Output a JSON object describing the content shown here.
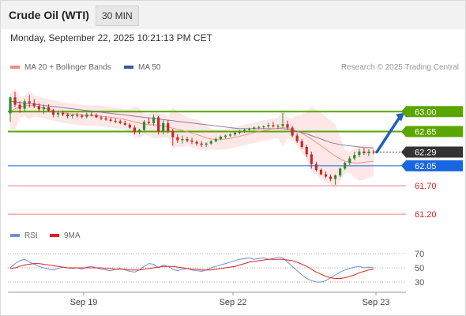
{
  "header": {
    "title": "Crude Oil (WTI)",
    "interval": "30 MIN",
    "timestamp": "Monday, September 22, 2025 10:21:13 PM CET"
  },
  "legend_main": [
    {
      "label": "MA 20 + Bollinger Bands",
      "color": "#f28b82"
    },
    {
      "label": "MA 50",
      "color": "#3b5998"
    }
  ],
  "copyright": "Research © 2025 Trading Central",
  "legend_rsi": [
    {
      "label": "RSI",
      "color": "#6f8fd8"
    },
    {
      "label": "9MA",
      "color": "#e02020"
    }
  ],
  "colors": {
    "up": "#2e8b2e",
    "down": "#c62828",
    "resistance": "#5aa500",
    "support": "#f08080",
    "pivot": "#1a66e0",
    "last_price": "#333333",
    "band_fill": "#fde3e3",
    "ma20": "#f28b82",
    "ma50": "#6a5a90",
    "arrow": "#1f5fbf"
  },
  "chart_data": [
    {
      "type": "candlestick",
      "title": "Crude Oil (WTI)",
      "x_labels": [
        "Sep 19",
        "Sep 22",
        "Sep 23"
      ],
      "ylim": [
        61.05,
        63.6
      ],
      "ohlc": [
        [
          62.97,
          63.26,
          62.82,
          63.25
        ],
        [
          63.25,
          63.35,
          63.08,
          63.12
        ],
        [
          63.12,
          63.18,
          62.98,
          63.05
        ],
        [
          63.05,
          63.22,
          63.0,
          63.18
        ],
        [
          63.18,
          63.29,
          63.07,
          63.15
        ],
        [
          63.15,
          63.22,
          63.06,
          63.1
        ],
        [
          63.1,
          63.15,
          63.0,
          63.04
        ],
        [
          63.04,
          63.12,
          62.96,
          63.08
        ],
        [
          63.08,
          63.13,
          62.99,
          63.02
        ],
        [
          63.02,
          63.05,
          62.9,
          62.95
        ],
        [
          62.95,
          63.02,
          62.9,
          62.98
        ],
        [
          62.98,
          63.02,
          62.92,
          62.95
        ],
        [
          62.95,
          62.98,
          62.88,
          62.92
        ],
        [
          62.92,
          62.96,
          62.88,
          62.94
        ],
        [
          62.94,
          62.98,
          62.9,
          62.93
        ],
        [
          62.93,
          62.96,
          62.88,
          62.91
        ],
        [
          62.91,
          62.98,
          62.88,
          62.95
        ],
        [
          62.95,
          62.99,
          62.91,
          62.94
        ],
        [
          62.94,
          62.97,
          62.89,
          62.9
        ],
        [
          62.9,
          62.93,
          62.85,
          62.88
        ],
        [
          62.88,
          62.92,
          62.84,
          62.86
        ],
        [
          62.86,
          62.9,
          62.82,
          62.84
        ],
        [
          62.84,
          62.88,
          62.8,
          62.83
        ],
        [
          62.83,
          62.86,
          62.78,
          62.8
        ],
        [
          62.8,
          62.84,
          62.75,
          62.77
        ],
        [
          62.77,
          62.8,
          62.7,
          62.72
        ],
        [
          62.72,
          62.76,
          62.6,
          62.64
        ],
        [
          62.64,
          62.7,
          62.6,
          62.68
        ],
        [
          62.68,
          62.85,
          62.66,
          62.82
        ],
        [
          62.82,
          62.9,
          62.78,
          62.8
        ],
        [
          62.8,
          62.95,
          62.75,
          62.9
        ],
        [
          62.9,
          62.92,
          62.6,
          62.65
        ],
        [
          62.65,
          62.85,
          62.6,
          62.8
        ],
        [
          62.8,
          62.85,
          62.62,
          62.66
        ],
        [
          62.66,
          62.7,
          62.4,
          62.55
        ],
        [
          62.55,
          62.6,
          62.45,
          62.5
        ],
        [
          62.5,
          62.58,
          62.44,
          62.52
        ],
        [
          62.52,
          62.56,
          62.46,
          62.49
        ],
        [
          62.49,
          62.54,
          62.43,
          62.47
        ],
        [
          62.47,
          62.5,
          62.4,
          62.44
        ],
        [
          62.44,
          62.48,
          62.38,
          62.42
        ],
        [
          62.42,
          62.46,
          62.38,
          62.44
        ],
        [
          62.44,
          62.5,
          62.42,
          62.48
        ],
        [
          62.48,
          62.55,
          62.46,
          62.52
        ],
        [
          62.52,
          62.58,
          62.5,
          62.56
        ],
        [
          62.56,
          62.6,
          62.53,
          62.58
        ],
        [
          62.58,
          62.62,
          62.55,
          62.6
        ],
        [
          62.6,
          62.65,
          62.57,
          62.63
        ],
        [
          62.63,
          62.68,
          62.6,
          62.66
        ],
        [
          62.66,
          62.7,
          62.63,
          62.68
        ],
        [
          62.68,
          62.72,
          62.65,
          62.7
        ],
        [
          62.7,
          62.74,
          62.67,
          62.72
        ],
        [
          62.72,
          62.75,
          62.69,
          62.73
        ],
        [
          62.73,
          62.76,
          62.7,
          62.74
        ],
        [
          62.74,
          62.8,
          62.71,
          62.76
        ],
        [
          62.76,
          62.82,
          62.72,
          62.74
        ],
        [
          62.74,
          62.78,
          62.7,
          62.75
        ],
        [
          62.75,
          62.98,
          62.72,
          62.78
        ],
        [
          62.78,
          62.84,
          62.68,
          62.72
        ],
        [
          62.72,
          62.75,
          62.55,
          62.58
        ],
        [
          62.58,
          62.62,
          62.45,
          62.48
        ],
        [
          62.48,
          62.52,
          62.35,
          62.38
        ],
        [
          62.38,
          62.42,
          62.2,
          62.25
        ],
        [
          62.25,
          62.3,
          62.0,
          62.08
        ],
        [
          62.08,
          62.12,
          61.95,
          61.98
        ],
        [
          61.98,
          62.0,
          61.88,
          61.9
        ],
        [
          61.9,
          61.95,
          61.83,
          61.86
        ],
        [
          61.86,
          61.9,
          61.78,
          61.82
        ],
        [
          61.82,
          61.9,
          61.72,
          61.88
        ],
        [
          61.88,
          62.02,
          61.85,
          62.0
        ],
        [
          62.0,
          62.12,
          61.98,
          62.1
        ],
        [
          62.1,
          62.22,
          62.06,
          62.18
        ],
        [
          62.18,
          62.3,
          62.15,
          62.24
        ],
        [
          62.24,
          62.35,
          62.2,
          62.3
        ],
        [
          62.3,
          62.36,
          62.24,
          62.27
        ],
        [
          62.27,
          62.34,
          62.22,
          62.3
        ],
        [
          62.3,
          62.33,
          62.25,
          62.29
        ]
      ],
      "ma20": [
        63.0,
        63.05,
        63.08,
        63.1,
        63.11,
        63.1,
        63.08,
        63.06,
        63.04,
        63.02,
        63.0,
        62.98,
        62.97,
        62.96,
        62.95,
        62.94,
        62.93,
        62.93,
        62.93,
        62.92,
        62.91,
        62.9,
        62.89,
        62.88,
        62.86,
        62.84,
        62.82,
        62.8,
        62.78,
        62.77,
        62.77,
        62.76,
        62.75,
        62.73,
        62.71,
        62.69,
        62.67,
        62.65,
        62.62,
        62.6,
        62.57,
        62.54,
        62.52,
        62.51,
        62.51,
        62.52,
        62.53,
        62.55,
        62.57,
        62.59,
        62.61,
        62.63,
        62.65,
        62.67,
        62.68,
        62.7,
        62.71,
        62.72,
        62.71,
        62.69,
        62.66,
        62.62,
        62.57,
        62.52,
        62.46,
        62.4,
        62.34,
        62.28,
        62.22,
        62.17,
        62.13,
        62.11,
        62.1,
        62.1,
        62.11,
        62.12,
        62.13
      ],
      "ma50": [
        63.18,
        63.17,
        63.16,
        63.15,
        63.14,
        63.13,
        63.12,
        63.11,
        63.1,
        63.09,
        63.08,
        63.07,
        63.06,
        63.05,
        63.04,
        63.03,
        63.02,
        63.01,
        63.0,
        62.99,
        62.98,
        62.97,
        62.96,
        62.95,
        62.94,
        62.93,
        62.92,
        62.91,
        62.9,
        62.89,
        62.88,
        62.87,
        62.86,
        62.85,
        62.84,
        62.83,
        62.82,
        62.81,
        62.8,
        62.79,
        62.78,
        62.77,
        62.76,
        62.75,
        62.74,
        62.73,
        62.72,
        62.71,
        62.7,
        62.7,
        62.7,
        62.7,
        62.7,
        62.7,
        62.7,
        62.7,
        62.7,
        62.7,
        62.69,
        62.67,
        62.65,
        62.63,
        62.61,
        62.58,
        62.55,
        62.52,
        62.49,
        62.46,
        62.44,
        62.42,
        62.41,
        62.4,
        62.39,
        62.38,
        62.37,
        62.37,
        62.36
      ],
      "levels": [
        {
          "value": 63.0,
          "label": "63.00",
          "kind": "resistance"
        },
        {
          "value": 62.65,
          "label": "62.65",
          "kind": "resistance"
        },
        {
          "value": 62.29,
          "label": "62.29",
          "kind": "last"
        },
        {
          "value": 62.05,
          "label": "62.05",
          "kind": "pivot"
        },
        {
          "value": 61.7,
          "label": "61.70",
          "kind": "support"
        },
        {
          "value": 61.2,
          "label": "61.20",
          "kind": "support"
        }
      ],
      "target_arrow": {
        "from": 62.29,
        "to": 62.98
      }
    },
    {
      "type": "line",
      "title": "",
      "series": [
        {
          "name": "RSI"
        },
        {
          "name": "9MA"
        }
      ],
      "ylim": [
        20,
        80
      ],
      "y_ticks": [
        {
          "value": 70,
          "label": "70"
        },
        {
          "value": 50,
          "label": "50"
        },
        {
          "value": 30,
          "label": "30"
        }
      ],
      "rsi": [
        50,
        56,
        60,
        62,
        58,
        55,
        52,
        50,
        48,
        47,
        49,
        51,
        50,
        49,
        50,
        48,
        51,
        52,
        50,
        48,
        47,
        46,
        48,
        49,
        47,
        45,
        44,
        47,
        52,
        56,
        55,
        50,
        54,
        52,
        48,
        46,
        48,
        49,
        47,
        46,
        45,
        47,
        50,
        52,
        54,
        56,
        58,
        60,
        62,
        63,
        64,
        62,
        63,
        64,
        62,
        63,
        65,
        64,
        58,
        52,
        46,
        40,
        35,
        32,
        30,
        30,
        32,
        36,
        40,
        44,
        47,
        49,
        51,
        52,
        50,
        51,
        50
      ],
      "ma9": [
        49,
        50,
        52,
        54,
        55,
        56,
        56,
        55,
        54,
        53,
        52,
        51,
        50,
        50,
        50,
        50,
        50,
        50,
        50,
        50,
        49,
        49,
        48,
        48,
        48,
        47,
        47,
        47,
        48,
        49,
        50,
        51,
        52,
        52,
        52,
        51,
        50,
        49,
        48,
        48,
        47,
        47,
        47,
        48,
        49,
        50,
        51,
        52,
        54,
        56,
        58,
        59,
        60,
        61,
        62,
        62,
        62,
        62,
        61,
        60,
        58,
        55,
        52,
        48,
        44,
        41,
        38,
        36,
        35,
        35,
        36,
        38,
        40,
        43,
        45,
        47,
        48
      ]
    }
  ]
}
